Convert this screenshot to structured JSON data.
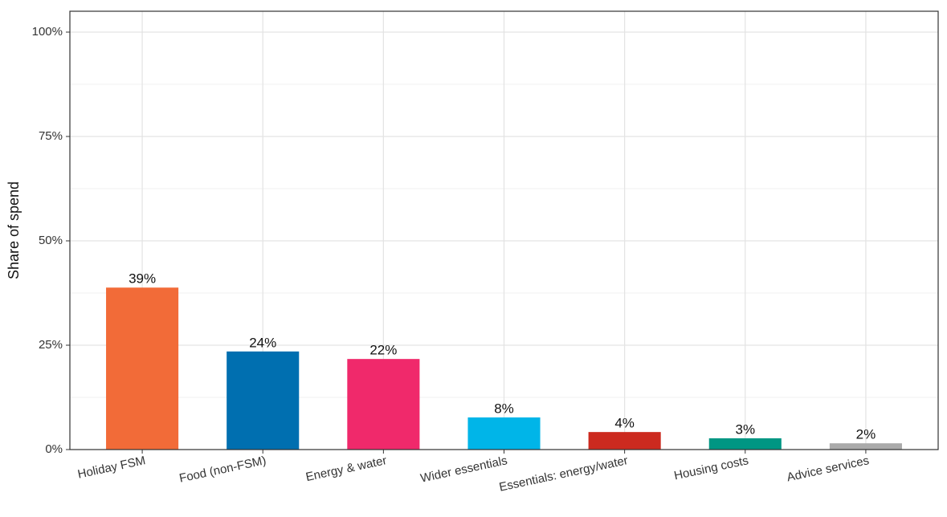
{
  "chart_data": {
    "type": "bar",
    "y_label": "Share of spend",
    "categories": [
      "Holiday FSM",
      "Food (non-FSM)",
      "Energy & water",
      "Wider essentials",
      "Essentials: energy/water",
      "Housing costs",
      "Advice services"
    ],
    "values": [
      38.8,
      23.5,
      21.7,
      7.7,
      4.2,
      2.7,
      1.5
    ],
    "value_labels": [
      "39%",
      "24%",
      "22%",
      "8%",
      "4%",
      "3%",
      "2%"
    ],
    "colors": [
      "#f26b38",
      "#006fb0",
      "#f0296b",
      "#00b5e8",
      "#cc2a1f",
      "#009683",
      "#aaaaaa"
    ],
    "ylim": [
      0,
      105
    ],
    "yticks": [
      {
        "value": 0,
        "label": "0%"
      },
      {
        "value": 25,
        "label": "25%"
      },
      {
        "value": 50,
        "label": "50%"
      },
      {
        "value": 75,
        "label": "75%"
      },
      {
        "value": 100,
        "label": "100%"
      }
    ],
    "yminor": [
      12.5,
      37.5,
      62.5,
      87.5
    ],
    "grid": true
  }
}
